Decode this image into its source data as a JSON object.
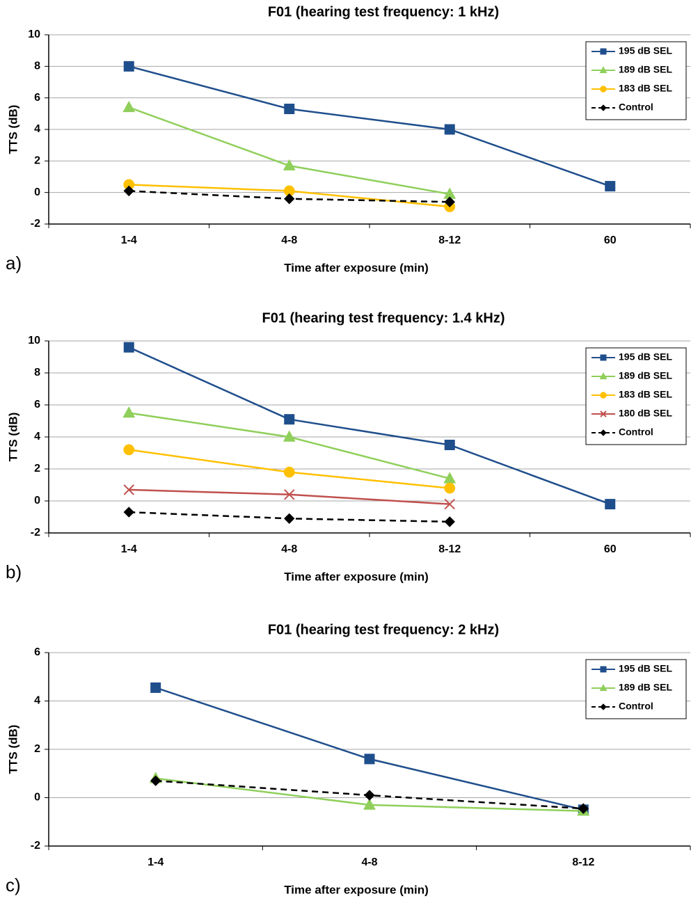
{
  "chart_data": [
    {
      "type": "line",
      "title": "F01 (hearing test frequency: 1 kHz)",
      "panel_label": "a)",
      "ylabel": "TTS (dB)",
      "xlabel": "Time after exposure (min)",
      "categories": [
        "1-4",
        "4-8",
        "8-12",
        "60"
      ],
      "ylim": [
        -2,
        10
      ],
      "yticks": [
        -2,
        0,
        2,
        4,
        6,
        8,
        10
      ],
      "grid": true,
      "legend": "upper right",
      "series": [
        {
          "name": "195 dB SEL",
          "color": "#1f4e8c",
          "marker": "square",
          "dashed": false,
          "values": [
            8,
            5.3,
            4,
            0.4
          ]
        },
        {
          "name": "189 dB SEL",
          "color": "#8fcf5a",
          "marker": "triangle",
          "dashed": false,
          "values": [
            5.4,
            1.7,
            -0.1,
            null
          ]
        },
        {
          "name": "183 dB SEL",
          "color": "#ffc000",
          "marker": "circle",
          "dashed": false,
          "values": [
            0.5,
            0.1,
            -0.9,
            null
          ]
        },
        {
          "name": "Control",
          "color": "#000000",
          "marker": "diamond",
          "dashed": true,
          "values": [
            0.1,
            -0.4,
            -0.6,
            null
          ]
        }
      ]
    },
    {
      "type": "line",
      "title": "F01 (hearing test frequency: 1.4 kHz)",
      "panel_label": "b)",
      "ylabel": "TTS (dB)",
      "xlabel": "Time after exposure (min)",
      "categories": [
        "1-4",
        "4-8",
        "8-12",
        "60"
      ],
      "ylim": [
        -2,
        10
      ],
      "yticks": [
        -2,
        0,
        2,
        4,
        6,
        8,
        10
      ],
      "grid": true,
      "legend": "upper right",
      "series": [
        {
          "name": "195 dB SEL",
          "color": "#1f4e8c",
          "marker": "square",
          "dashed": false,
          "values": [
            9.6,
            5.1,
            3.5,
            -0.2
          ]
        },
        {
          "name": "189 dB SEL",
          "color": "#8fcf5a",
          "marker": "triangle",
          "dashed": false,
          "values": [
            5.5,
            4.0,
            1.4,
            null
          ]
        },
        {
          "name": "183 dB SEL",
          "color": "#ffc000",
          "marker": "circle",
          "dashed": false,
          "values": [
            3.2,
            1.8,
            0.8,
            null
          ]
        },
        {
          "name": "180 dB SEL",
          "color": "#c0504d",
          "marker": "x",
          "dashed": false,
          "values": [
            0.7,
            0.4,
            -0.2,
            null
          ]
        },
        {
          "name": "Control",
          "color": "#000000",
          "marker": "diamond",
          "dashed": true,
          "values": [
            -0.7,
            -1.1,
            -1.3,
            null
          ]
        }
      ]
    },
    {
      "type": "line",
      "title": "F01 (hearing test frequency: 2 kHz)",
      "panel_label": "c)",
      "ylabel": "TTS (dB)",
      "xlabel": "Time after exposure (min)",
      "categories": [
        "1-4",
        "4-8",
        "8-12"
      ],
      "ylim": [
        -2,
        6
      ],
      "yticks": [
        -2,
        0,
        2,
        4,
        6
      ],
      "grid": true,
      "legend": "upper right",
      "series": [
        {
          "name": "195 dB SEL",
          "color": "#1f4e8c",
          "marker": "square",
          "dashed": false,
          "values": [
            4.55,
            1.6,
            -0.5
          ]
        },
        {
          "name": "189 dB SEL",
          "color": "#8fcf5a",
          "marker": "triangle",
          "dashed": false,
          "values": [
            0.8,
            -0.3,
            -0.55
          ]
        },
        {
          "name": "Control",
          "color": "#000000",
          "marker": "diamond",
          "dashed": true,
          "values": [
            0.7,
            0.1,
            -0.45
          ]
        }
      ]
    }
  ]
}
